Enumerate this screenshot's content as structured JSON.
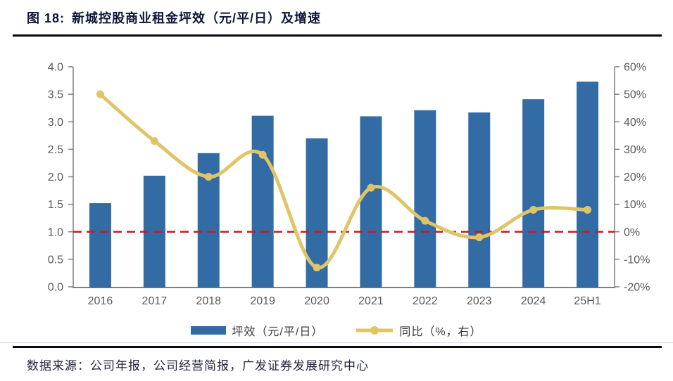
{
  "header": {
    "figure_label": "图 18:",
    "title": "新城控股商业租金坪效（元/平/日）及增速"
  },
  "chart_data": {
    "type": "bar+line",
    "title": "新城控股商业租金坪效（元/平/日）及增速",
    "categories": [
      "2016",
      "2017",
      "2018",
      "2019",
      "2020",
      "2021",
      "2022",
      "2023",
      "2024",
      "25H1"
    ],
    "series": [
      {
        "name": "坪效（元/平/日）",
        "type": "bar",
        "axis": "left",
        "color": "#336CA4",
        "values": [
          1.52,
          2.02,
          2.43,
          3.11,
          2.7,
          3.1,
          3.21,
          3.17,
          3.41,
          3.73
        ]
      },
      {
        "name": "同比（%，右）",
        "type": "line",
        "axis": "right",
        "color": "#E0C566",
        "values": [
          50,
          33,
          20,
          28,
          -13,
          16,
          4,
          -2,
          8,
          8
        ]
      }
    ],
    "left_axis": {
      "min": 0.0,
      "max": 4.0,
      "step": 0.5,
      "tick_labels": [
        "0.0",
        "0.5",
        "1.0",
        "1.5",
        "2.0",
        "2.5",
        "3.0",
        "3.5",
        "4.0"
      ]
    },
    "right_axis": {
      "min": -20,
      "max": 60,
      "step": 10,
      "tick_labels": [
        "-20%",
        "-10%",
        "0%",
        "10%",
        "20%",
        "30%",
        "40%",
        "50%",
        "60%"
      ]
    },
    "reference_line": {
      "right_axis_value": 0,
      "color": "#C02020",
      "style": "dashed"
    },
    "grid": false,
    "legend_position": "bottom",
    "axis_color": "#7F7F7F",
    "tick_text_color": "#595959"
  },
  "legend": {
    "items": [
      {
        "label": "坪效（元/平/日）",
        "swatch": "bar",
        "color": "#336CA4"
      },
      {
        "label": "同比（%，右）",
        "swatch": "line-marker",
        "color": "#E0C566"
      }
    ]
  },
  "footer": {
    "source": "数据来源：公司年报，公司经营简报，广发证券发展研究中心"
  }
}
